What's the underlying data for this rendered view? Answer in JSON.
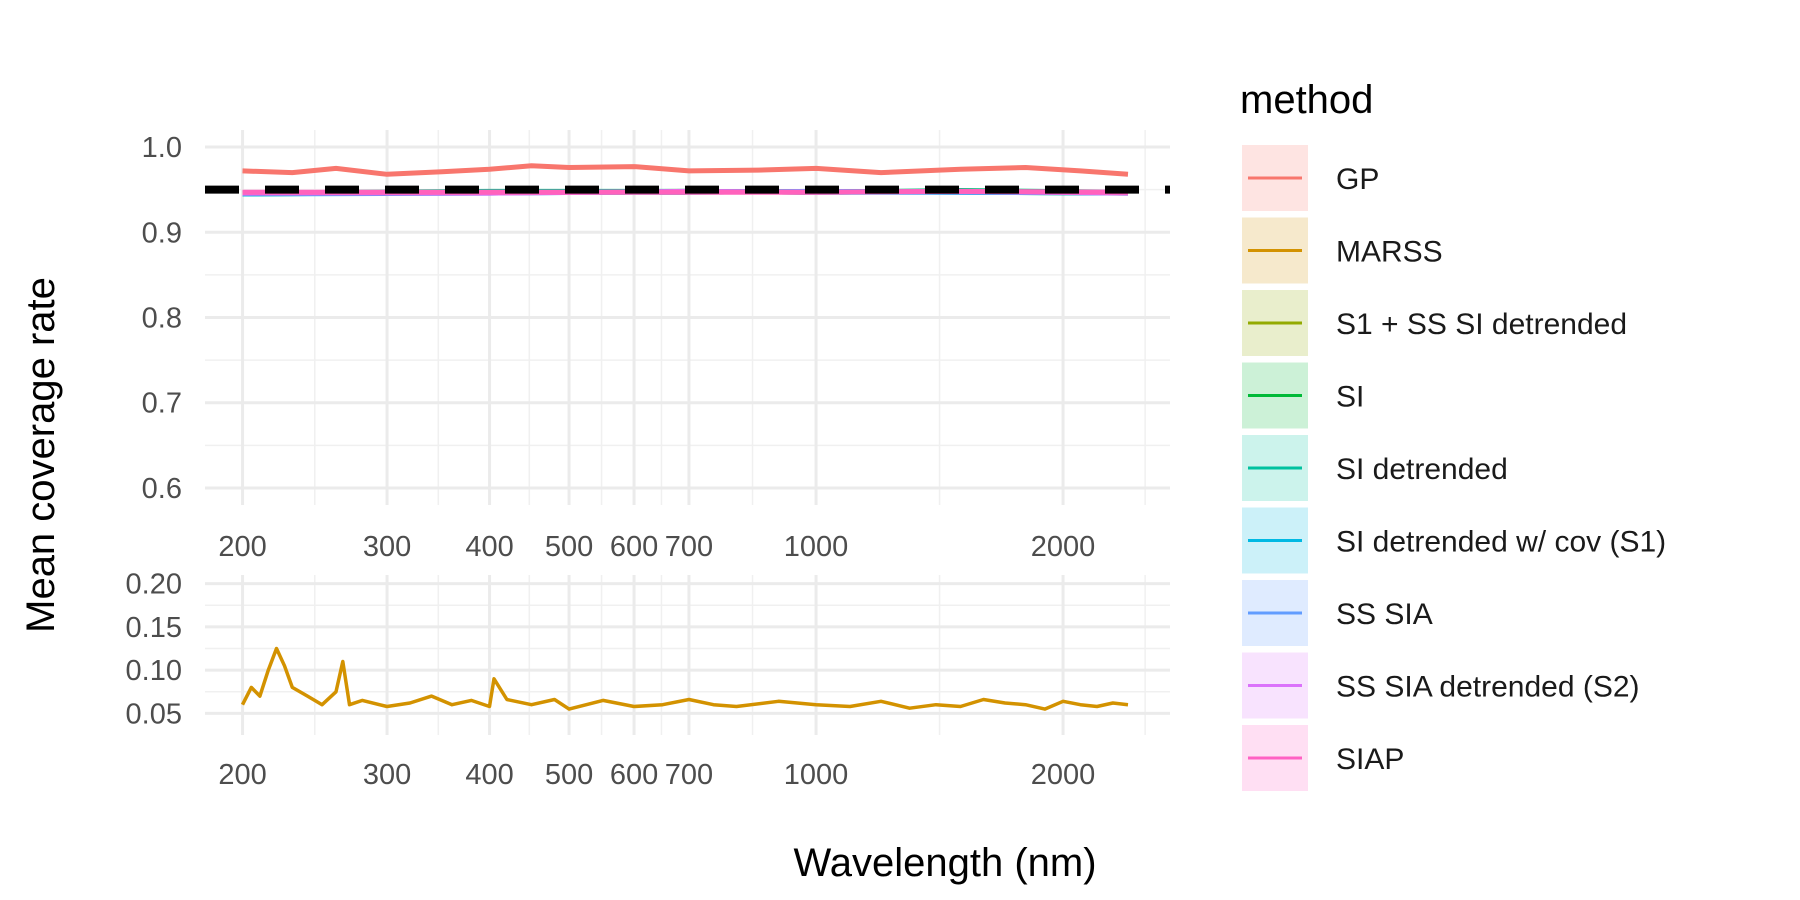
{
  "chart_data": [
    {
      "type": "line",
      "panel": "top",
      "x_scale": "log10",
      "x_breaks": [
        200,
        300,
        400,
        500,
        600,
        700,
        1000,
        2000
      ],
      "x_tick_labels": [
        "200",
        "300",
        "400",
        "500",
        "600",
        "700",
        "1000",
        "2000"
      ],
      "xlim": [
        180,
        2700
      ],
      "y_breaks": [
        0.6,
        0.7,
        0.8,
        0.9,
        1.0
      ],
      "y_tick_labels": [
        "0.6",
        "0.7",
        "0.8",
        "0.9",
        "1.0"
      ],
      "ylim": [
        0.58,
        1.02
      ],
      "reference_line": {
        "y": 0.95,
        "style": "dashed",
        "color": "#000000"
      },
      "series": [
        {
          "name": "GP",
          "color": "#F8766D",
          "x": [
            200,
            230,
            260,
            300,
            350,
            400,
            450,
            500,
            600,
            700,
            850,
            1000,
            1200,
            1500,
            1800,
            2100,
            2400
          ],
          "values": [
            0.972,
            0.97,
            0.975,
            0.968,
            0.971,
            0.974,
            0.978,
            0.976,
            0.977,
            0.972,
            0.973,
            0.975,
            0.97,
            0.974,
            0.976,
            0.972,
            0.968
          ]
        },
        {
          "name": "S1 + SS SI detrended",
          "color": "#A3A500",
          "x": [
            200,
            400,
            700,
            1000,
            1500,
            2400
          ],
          "values": [
            0.946,
            0.947,
            0.948,
            0.947,
            0.948,
            0.947
          ]
        },
        {
          "name": "SI",
          "color": "#00BA38",
          "x": [
            200,
            400,
            700,
            1000,
            1500,
            2400
          ],
          "values": [
            0.945,
            0.947,
            0.947,
            0.948,
            0.947,
            0.946
          ]
        },
        {
          "name": "SI detrended",
          "color": "#00BF7D",
          "x": [
            200,
            400,
            700,
            1000,
            1500,
            2400
          ],
          "values": [
            0.946,
            0.948,
            0.948,
            0.947,
            0.949,
            0.947
          ]
        },
        {
          "name": "SI detrended w/ cov (S1)",
          "color": "#00B0F6",
          "x": [
            200,
            400,
            700,
            1000,
            1500,
            2400
          ],
          "values": [
            0.945,
            0.946,
            0.948,
            0.947,
            0.947,
            0.946
          ]
        },
        {
          "name": "SS SIA",
          "color": "#619CFF",
          "x": [
            200,
            400,
            700,
            1000,
            1500,
            2400
          ],
          "values": [
            0.946,
            0.947,
            0.947,
            0.948,
            0.947,
            0.947
          ]
        },
        {
          "name": "SS SIA detrended (S2)",
          "color": "#E76BF3",
          "x": [
            200,
            400,
            700,
            1000,
            1500,
            2400
          ],
          "values": [
            0.946,
            0.946,
            0.948,
            0.947,
            0.948,
            0.946
          ]
        },
        {
          "name": "SIAP",
          "color": "#FF62BC",
          "x": [
            200,
            400,
            700,
            1000,
            1500,
            2400
          ],
          "values": [
            0.947,
            0.947,
            0.947,
            0.947,
            0.948,
            0.947
          ]
        }
      ]
    },
    {
      "type": "line",
      "panel": "bottom",
      "x_scale": "log10",
      "x_breaks": [
        200,
        300,
        400,
        500,
        600,
        700,
        1000,
        2000
      ],
      "x_tick_labels": [
        "200",
        "300",
        "400",
        "500",
        "600",
        "700",
        "1000",
        "2000"
      ],
      "xlim": [
        180,
        2700
      ],
      "y_breaks": [
        0.05,
        0.1,
        0.15,
        0.2
      ],
      "y_tick_labels": [
        "0.05",
        "0.10",
        "0.15",
        "0.20"
      ],
      "ylim": [
        0.025,
        0.21
      ],
      "series": [
        {
          "name": "MARSS",
          "color": "#D39200",
          "x": [
            200,
            205,
            210,
            215,
            220,
            225,
            230,
            240,
            250,
            260,
            265,
            270,
            280,
            300,
            320,
            340,
            360,
            380,
            400,
            405,
            420,
            450,
            480,
            500,
            550,
            600,
            650,
            700,
            750,
            800,
            900,
            1000,
            1100,
            1200,
            1300,
            1400,
            1500,
            1600,
            1700,
            1800,
            1900,
            2000,
            2100,
            2200,
            2300,
            2400
          ],
          "values": [
            0.06,
            0.08,
            0.07,
            0.1,
            0.125,
            0.105,
            0.08,
            0.07,
            0.06,
            0.075,
            0.11,
            0.06,
            0.065,
            0.058,
            0.062,
            0.07,
            0.06,
            0.065,
            0.058,
            0.09,
            0.066,
            0.06,
            0.066,
            0.055,
            0.065,
            0.058,
            0.06,
            0.066,
            0.06,
            0.058,
            0.064,
            0.06,
            0.058,
            0.064,
            0.056,
            0.06,
            0.058,
            0.066,
            0.062,
            0.06,
            0.055,
            0.064,
            0.06,
            0.058,
            0.062,
            0.06
          ]
        }
      ]
    }
  ],
  "axes": {
    "xlabel": "Wavelength (nm)",
    "ylabel": "Mean coverage rate"
  },
  "legend": {
    "title": "method",
    "placement": "right",
    "items": [
      {
        "label": "GP",
        "color": "#F8766D"
      },
      {
        "label": "MARSS",
        "color": "#D39200"
      },
      {
        "label": "S1 + SS SI detrended",
        "color": "#93AA00"
      },
      {
        "label": "SI",
        "color": "#00BA38"
      },
      {
        "label": "SI detrended",
        "color": "#00C19F"
      },
      {
        "label": "SI detrended w/ cov (S1)",
        "color": "#00B9E3"
      },
      {
        "label": "SS SIA",
        "color": "#619CFF"
      },
      {
        "label": "SS SIA detrended (S2)",
        "color": "#DB72FB"
      },
      {
        "label": "SIAP",
        "color": "#FF61C3"
      }
    ]
  }
}
